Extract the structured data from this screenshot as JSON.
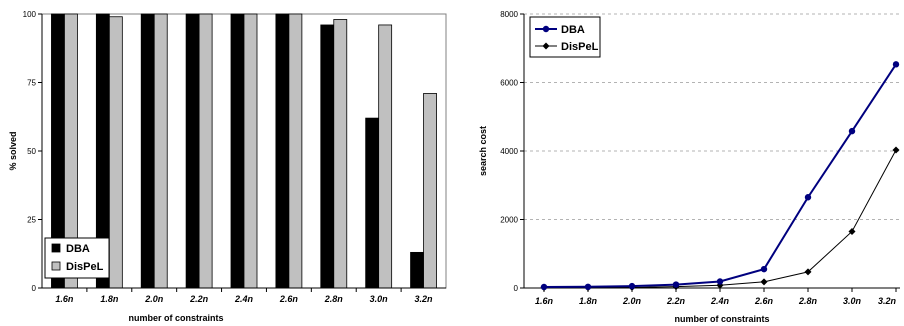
{
  "chart_data": [
    {
      "type": "bar",
      "categories": [
        "1.6n",
        "1.8n",
        "2.0n",
        "2.2n",
        "2.4n",
        "2.6n",
        "2.8n",
        "3.0n",
        "3.2n"
      ],
      "series": [
        {
          "name": "DBA",
          "values": [
            100,
            100,
            100,
            100,
            100,
            100,
            96,
            62,
            13
          ],
          "color": "#000000"
        },
        {
          "name": "DisPeL",
          "values": [
            100,
            99,
            100,
            100,
            100,
            100,
            98,
            96,
            71
          ],
          "color": "#c0c0c0"
        }
      ],
      "xlabel": "number of constraints",
      "ylabel": "% solved",
      "ylim": [
        0,
        100
      ],
      "yticks": [
        "0",
        "25",
        "50",
        "75",
        "100"
      ],
      "grid": false,
      "legend_position": "bottom-left"
    },
    {
      "type": "line",
      "categories": [
        "1.6n",
        "1.8n",
        "2.0n",
        "2.2n",
        "2.4n",
        "2.6n",
        "2.8n",
        "3.0n",
        "3.2n"
      ],
      "series": [
        {
          "name": "DBA",
          "values": [
            30,
            35,
            55,
            100,
            190,
            550,
            2650,
            4580,
            6530
          ],
          "color": "#00007f",
          "marker": "circle"
        },
        {
          "name": "DisPeL",
          "values": [
            10,
            12,
            18,
            40,
            80,
            180,
            470,
            1650,
            4030
          ],
          "color": "#000000",
          "marker": "diamond"
        }
      ],
      "xlabel": "number of constraints",
      "ylabel": "search cost",
      "ylim": [
        0,
        8000
      ],
      "yticks": [
        "0",
        "2000",
        "4000",
        "6000",
        "8000"
      ],
      "grid": true,
      "legend_position": "top-left"
    }
  ]
}
